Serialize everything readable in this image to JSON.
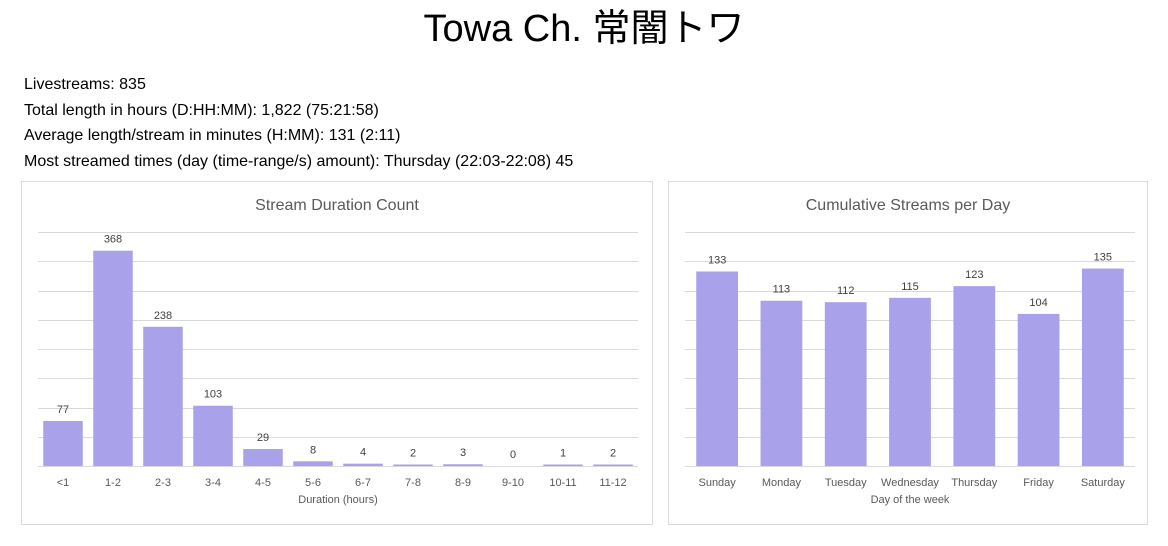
{
  "page": {
    "title": "Towa Ch. 常闇トワ",
    "stats": [
      {
        "label": "Livestreams:",
        "value": "835"
      },
      {
        "label": "Total length in hours (D:HH:MM):",
        "value": "1,822 (75:21:58)"
      },
      {
        "label": "Average length/stream in minutes (H:MM):",
        "value": "131 (2:11)"
      },
      {
        "label": "Most streamed times (day (time-range/s) amount):",
        "value": "Thursday (22:03-22:08) 45"
      }
    ]
  },
  "colors": {
    "bar": "#a9a1e9",
    "grid": "#d9d9d9",
    "axis_text": "#595959",
    "title_text": "#595959"
  },
  "chart_data": [
    {
      "type": "bar",
      "title": "Stream Duration Count",
      "xlabel": "Duration (hours)",
      "ylabel": "",
      "categories": [
        "<1",
        "1-2",
        "2-3",
        "3-4",
        "4-5",
        "5-6",
        "6-7",
        "7-8",
        "8-9",
        "9-10",
        "10-11",
        "11-12"
      ],
      "values": [
        77,
        368,
        238,
        103,
        29,
        8,
        4,
        2,
        3,
        0,
        1,
        2
      ],
      "ylim": [
        0,
        400
      ],
      "ystep": 50,
      "grid": true,
      "legend": "none",
      "data_labels": true
    },
    {
      "type": "bar",
      "title": "Cumulative Streams per Day",
      "xlabel": "Day of the week",
      "ylabel": "",
      "categories": [
        "Sunday",
        "Monday",
        "Tuesday",
        "Wednesday",
        "Thursday",
        "Friday",
        "Saturday"
      ],
      "values": [
        133,
        113,
        112,
        115,
        123,
        104,
        135
      ],
      "ylim": [
        0,
        160
      ],
      "ystep": 20,
      "grid": true,
      "legend": "none",
      "data_labels": true
    }
  ]
}
